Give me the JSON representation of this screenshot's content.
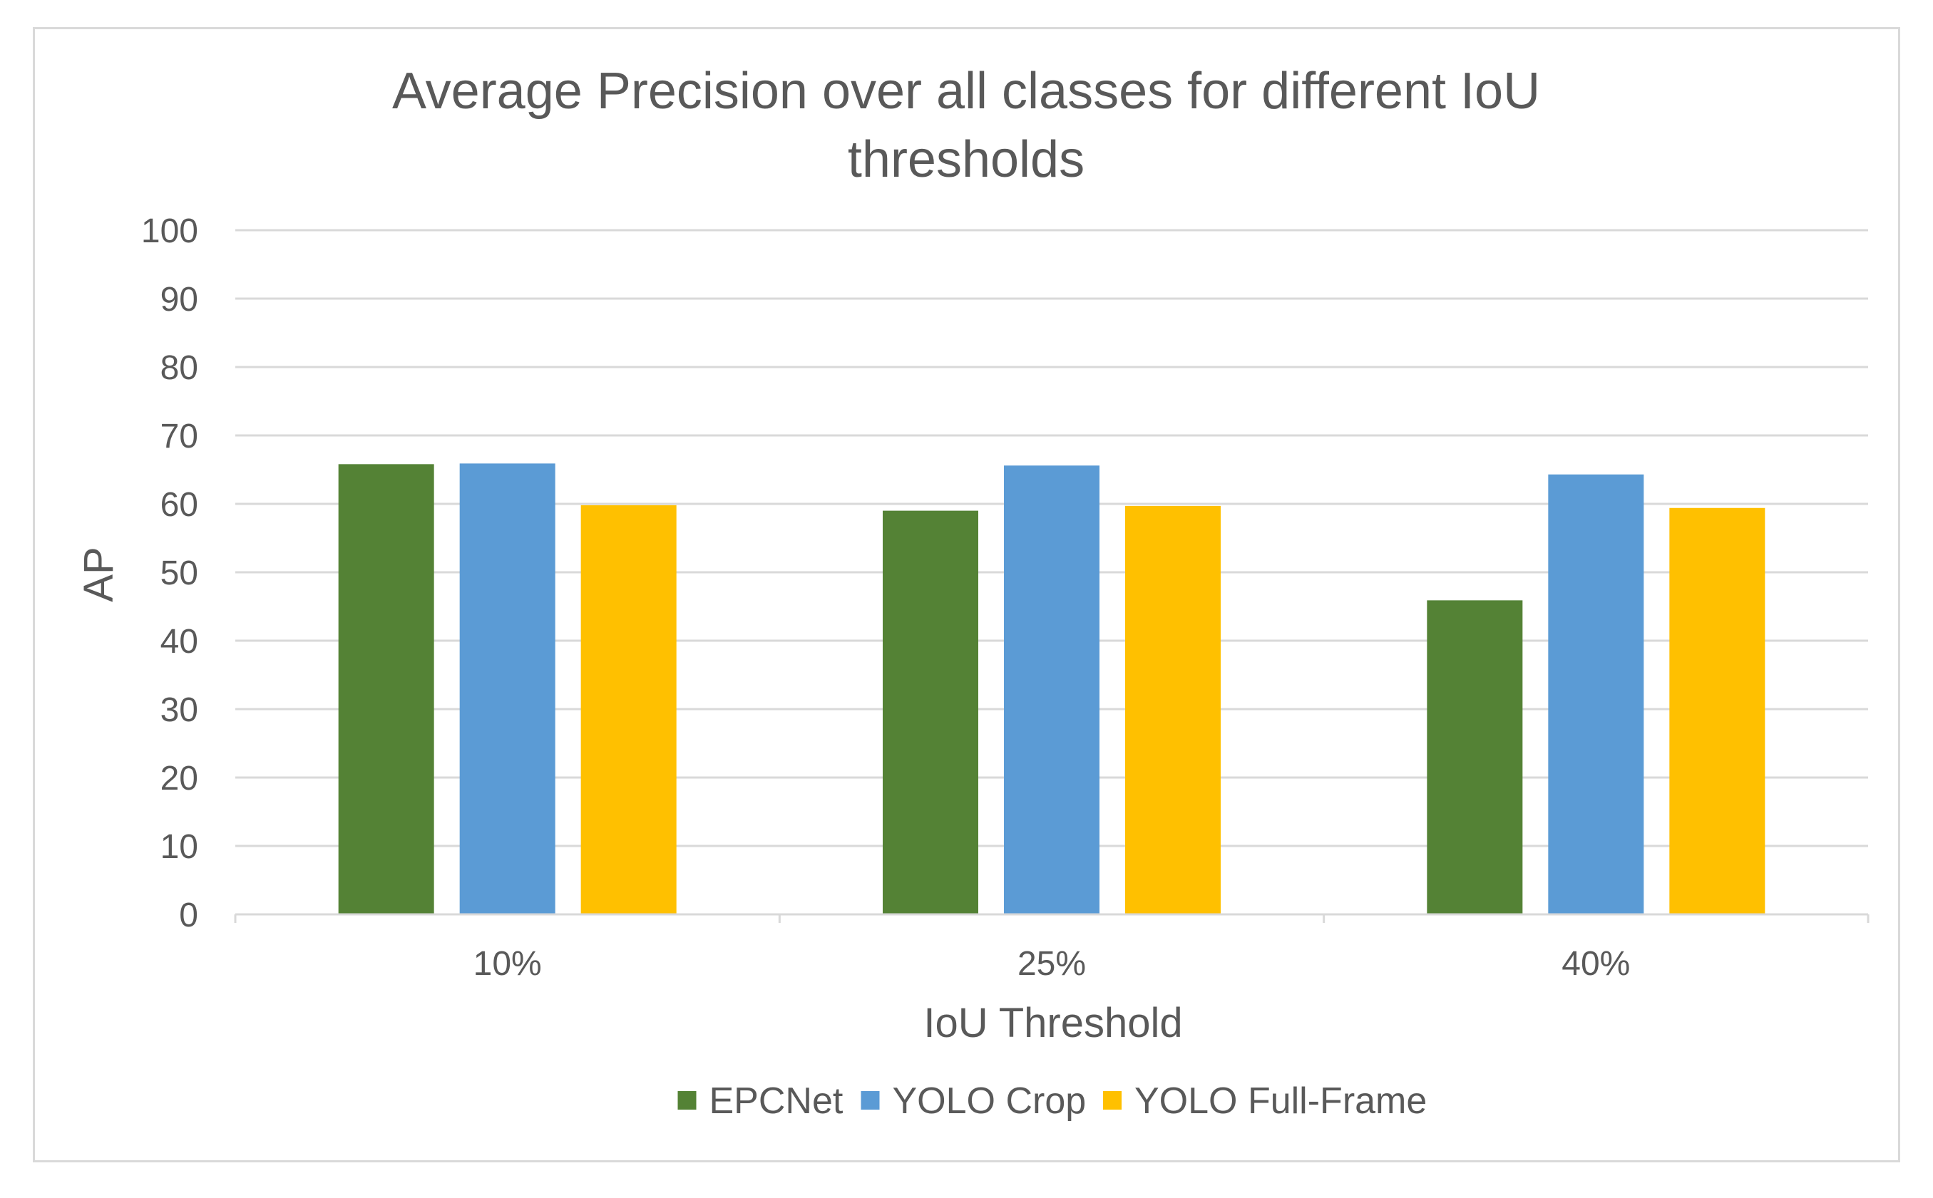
{
  "chart_data": {
    "type": "bar",
    "title_lines": [
      "Average Precision over all classes for different IoU",
      "thresholds"
    ],
    "xlabel": "IoU Threshold",
    "ylabel": "AP",
    "categories": [
      "10%",
      "25%",
      "40%"
    ],
    "ylim": [
      0,
      100
    ],
    "yticks": [
      "0",
      "10",
      "20",
      "30",
      "40",
      "50",
      "60",
      "70",
      "80",
      "90",
      "100"
    ],
    "grid": true,
    "legend_position": "bottom",
    "series": [
      {
        "name": "EPCNet",
        "color": "#548235",
        "values": [
          65.8,
          59.0,
          45.9
        ]
      },
      {
        "name": "YOLO Crop",
        "color": "#5b9bd5",
        "values": [
          65.9,
          65.6,
          64.3
        ]
      },
      {
        "name": "YOLO Full-Frame",
        "color": "#ffc000",
        "values": [
          59.8,
          59.7,
          59.4
        ]
      }
    ]
  }
}
